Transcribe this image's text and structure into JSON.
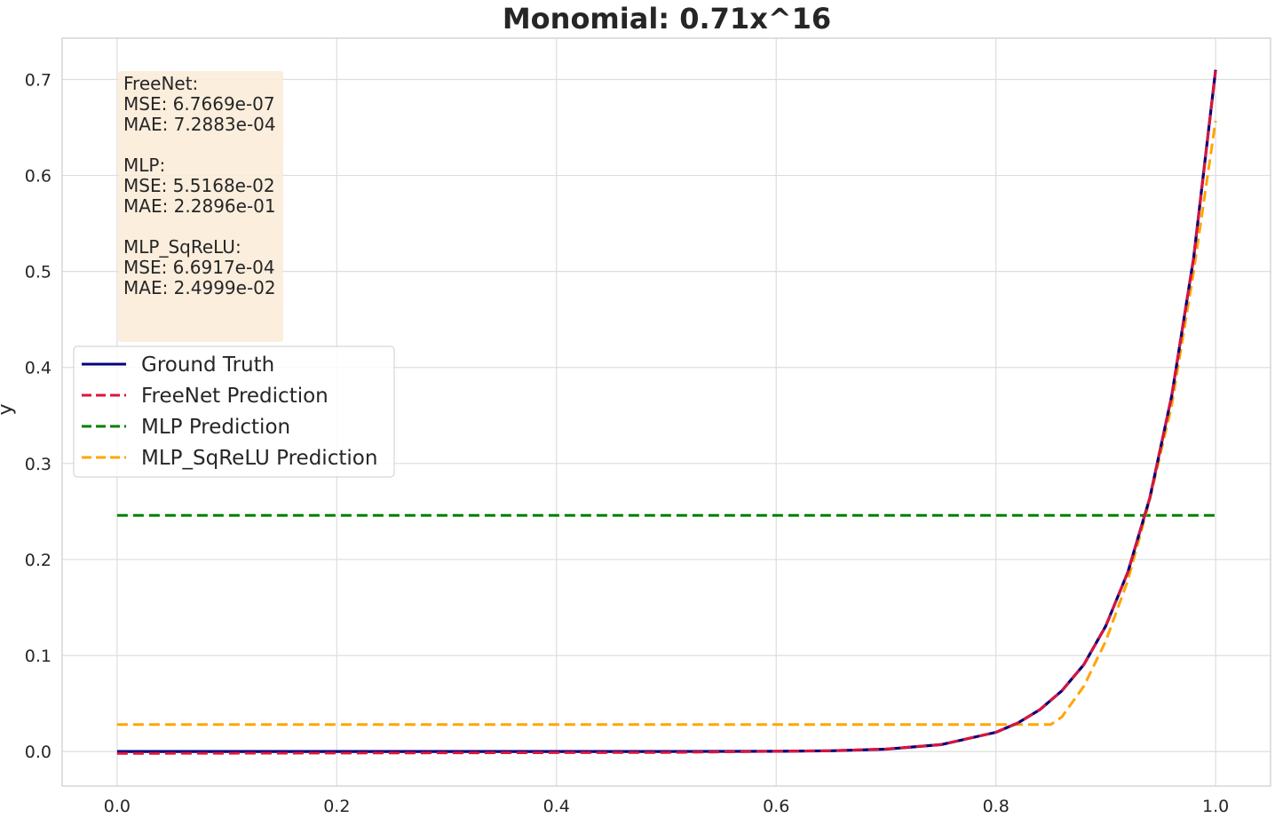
{
  "chart_data": {
    "type": "line",
    "title": "Monomial: 0.71x^16",
    "xlabel": "",
    "ylabel": "y",
    "xlim": [
      -0.05,
      1.05
    ],
    "ylim": [
      -0.036,
      0.743
    ],
    "xticks": [
      0.0,
      0.2,
      0.4,
      0.6,
      0.8,
      1.0
    ],
    "xtick_labels": [
      "0.0",
      "0.2",
      "0.4",
      "0.6",
      "0.8",
      "1.0"
    ],
    "yticks": [
      0.0,
      0.1,
      0.2,
      0.3,
      0.4,
      0.5,
      0.6,
      0.7
    ],
    "ytick_labels": [
      "0.0",
      "0.1",
      "0.2",
      "0.3",
      "0.4",
      "0.5",
      "0.6",
      "0.7"
    ],
    "grid": true,
    "legend_position": "center-left",
    "series": [
      {
        "name": "Ground Truth",
        "color": "#00007f",
        "style": "solid",
        "x": [
          0.0,
          0.5,
          0.6,
          0.65,
          0.7,
          0.75,
          0.8,
          0.82,
          0.84,
          0.86,
          0.88,
          0.9,
          0.92,
          0.94,
          0.96,
          0.98,
          1.0
        ],
        "y": [
          0.0,
          0.0,
          0.0002,
          0.0007,
          0.0024,
          0.0071,
          0.02,
          0.0297,
          0.0436,
          0.0632,
          0.0905,
          0.1307,
          0.1866,
          0.2638,
          0.3701,
          0.5144,
          0.71
        ]
      },
      {
        "name": "FreeNet Prediction",
        "color": "#dc143c",
        "style": "dashed",
        "x": [
          0.0,
          0.5,
          0.6,
          0.65,
          0.7,
          0.75,
          0.8,
          0.82,
          0.84,
          0.86,
          0.88,
          0.9,
          0.92,
          0.94,
          0.96,
          0.98,
          1.0
        ],
        "y": [
          -0.002,
          -0.001,
          0.0002,
          0.0008,
          0.0026,
          0.0072,
          0.0201,
          0.0298,
          0.0437,
          0.0632,
          0.0905,
          0.1307,
          0.1866,
          0.2638,
          0.3701,
          0.5144,
          0.709
        ]
      },
      {
        "name": "MLP Prediction",
        "color": "#008000",
        "style": "dashed",
        "x": [
          0.0,
          1.0
        ],
        "y": [
          0.246,
          0.246
        ]
      },
      {
        "name": "MLP_SqReLU Prediction",
        "color": "#ffa500",
        "style": "dashed",
        "x": [
          0.0,
          0.85,
          0.86,
          0.88,
          0.9,
          0.92,
          0.94,
          0.96,
          0.98,
          1.0
        ],
        "y": [
          0.028,
          0.028,
          0.036,
          0.068,
          0.115,
          0.178,
          0.262,
          0.36,
          0.5,
          0.657
        ]
      }
    ],
    "annotation": {
      "lines": [
        "FreeNet:",
        "MSE: 6.7669e-07",
        "MAE: 7.2883e-04",
        "",
        "MLP:",
        "MSE: 5.5168e-02",
        "MAE: 2.2896e-01",
        "",
        "MLP_SqReLU:",
        "MSE: 6.6917e-04",
        "MAE: 2.4999e-02"
      ],
      "background": "#faebd7"
    }
  }
}
